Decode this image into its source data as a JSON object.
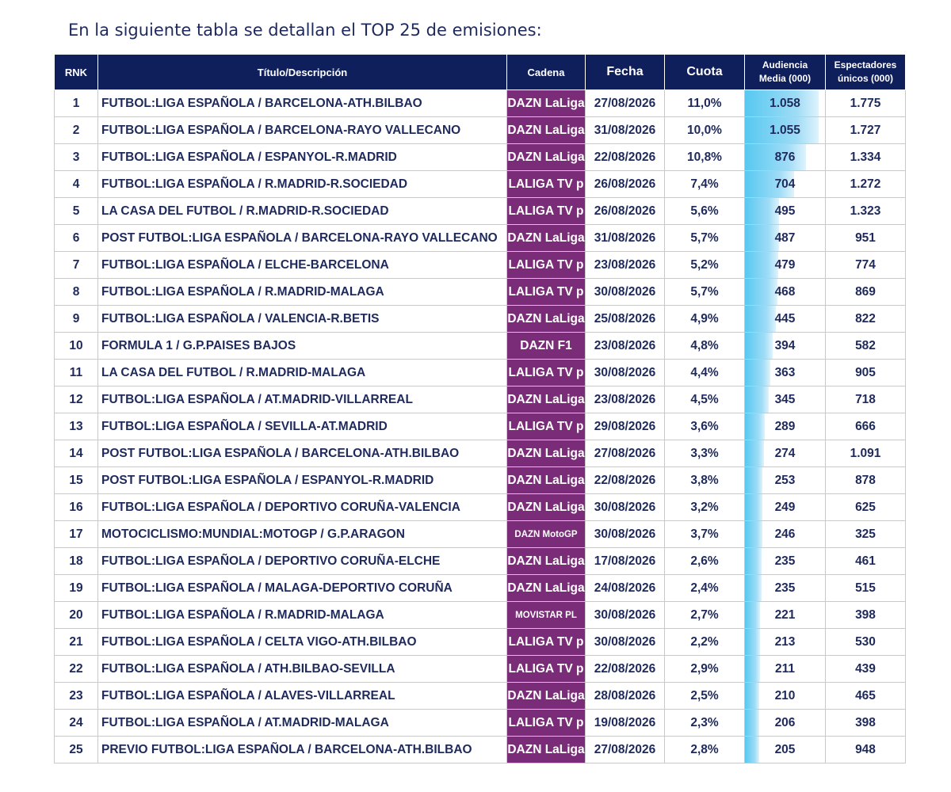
{
  "heading": "En la siguiente tabla se detallan el TOP 25 de emisiones:",
  "table": {
    "headers": {
      "rank": "RNK",
      "title": "Título/Descripción",
      "channel": "Cadena",
      "date": "Fecha",
      "share": "Cuota",
      "audience_line1": "Audiencia",
      "audience_line2": "Media (000)",
      "unique_line1": "Espectadores",
      "unique_line2": "únicos (000)"
    },
    "audience_max": 1058,
    "bar_color": "#57c8f0",
    "channel_color": "#7b2c78",
    "header_color": "#0f1f5c",
    "rows": [
      {
        "rank": "1",
        "title": "FUTBOL:LIGA ESPAÑOLA / BARCELONA-ATH.BILBAO",
        "channel": "DAZN LaLiga",
        "date": "27/08/2026",
        "share": "11,0%",
        "audience": "1.058",
        "unique": "1.775",
        "aud_value": 1058
      },
      {
        "rank": "2",
        "title": "FUTBOL:LIGA ESPAÑOLA / BARCELONA-RAYO VALLECANO",
        "channel": "DAZN LaLiga",
        "date": "31/08/2026",
        "share": "10,0%",
        "audience": "1.055",
        "unique": "1.727",
        "aud_value": 1055
      },
      {
        "rank": "3",
        "title": "FUTBOL:LIGA ESPAÑOLA / ESPANYOL-R.MADRID",
        "channel": "DAZN LaLiga",
        "date": "22/08/2026",
        "share": "10,8%",
        "audience": "876",
        "unique": "1.334",
        "aud_value": 876
      },
      {
        "rank": "4",
        "title": "FUTBOL:LIGA ESPAÑOLA / R.MADRID-R.SOCIEDAD",
        "channel": "LALIGA TV p",
        "date": "26/08/2026",
        "share": "7,4%",
        "audience": "704",
        "unique": "1.272",
        "aud_value": 704
      },
      {
        "rank": "5",
        "title": "LA CASA DEL FUTBOL / R.MADRID-R.SOCIEDAD",
        "channel": "LALIGA TV p",
        "date": "26/08/2026",
        "share": "5,6%",
        "audience": "495",
        "unique": "1.323",
        "aud_value": 495
      },
      {
        "rank": "6",
        "title": "POST FUTBOL:LIGA ESPAÑOLA / BARCELONA-RAYO VALLECANO",
        "channel": "DAZN LaLiga",
        "date": "31/08/2026",
        "share": "5,7%",
        "audience": "487",
        "unique": "951",
        "aud_value": 487
      },
      {
        "rank": "7",
        "title": "FUTBOL:LIGA ESPAÑOLA / ELCHE-BARCELONA",
        "channel": "LALIGA TV p",
        "date": "23/08/2026",
        "share": "5,2%",
        "audience": "479",
        "unique": "774",
        "aud_value": 479
      },
      {
        "rank": "8",
        "title": "FUTBOL:LIGA ESPAÑOLA / R.MADRID-MALAGA",
        "channel": "LALIGA TV p",
        "date": "30/08/2026",
        "share": "5,7%",
        "audience": "468",
        "unique": "869",
        "aud_value": 468
      },
      {
        "rank": "9",
        "title": "FUTBOL:LIGA ESPAÑOLA / VALENCIA-R.BETIS",
        "channel": "DAZN LaLiga",
        "date": "25/08/2026",
        "share": "4,9%",
        "audience": "445",
        "unique": "822",
        "aud_value": 445
      },
      {
        "rank": "10",
        "title": "FORMULA 1 / G.P.PAISES BAJOS",
        "channel": "DAZN F1",
        "date": "23/08/2026",
        "share": "4,8%",
        "audience": "394",
        "unique": "582",
        "aud_value": 394
      },
      {
        "rank": "11",
        "title": "LA CASA DEL FUTBOL / R.MADRID-MALAGA",
        "channel": "LALIGA TV p",
        "date": "30/08/2026",
        "share": "4,4%",
        "audience": "363",
        "unique": "905",
        "aud_value": 363
      },
      {
        "rank": "12",
        "title": "FUTBOL:LIGA ESPAÑOLA / AT.MADRID-VILLARREAL",
        "channel": "DAZN LaLiga",
        "date": "23/08/2026",
        "share": "4,5%",
        "audience": "345",
        "unique": "718",
        "aud_value": 345
      },
      {
        "rank": "13",
        "title": "FUTBOL:LIGA ESPAÑOLA / SEVILLA-AT.MADRID",
        "channel": "LALIGA TV p",
        "date": "29/08/2026",
        "share": "3,6%",
        "audience": "289",
        "unique": "666",
        "aud_value": 289
      },
      {
        "rank": "14",
        "title": "POST FUTBOL:LIGA ESPAÑOLA / BARCELONA-ATH.BILBAO",
        "channel": "DAZN LaLiga",
        "date": "27/08/2026",
        "share": "3,3%",
        "audience": "274",
        "unique": "1.091",
        "aud_value": 274
      },
      {
        "rank": "15",
        "title": "POST FUTBOL:LIGA ESPAÑOLA / ESPANYOL-R.MADRID",
        "channel": "DAZN LaLiga",
        "date": "22/08/2026",
        "share": "3,8%",
        "audience": "253",
        "unique": "878",
        "aud_value": 253
      },
      {
        "rank": "16",
        "title": "FUTBOL:LIGA ESPAÑOLA / DEPORTIVO CORUÑA-VALENCIA",
        "channel": "DAZN LaLiga",
        "date": "30/08/2026",
        "share": "3,2%",
        "audience": "249",
        "unique": "625",
        "aud_value": 249
      },
      {
        "rank": "17",
        "title": "MOTOCICLISMO:MUNDIAL:MOTOGP / G.P.ARAGON",
        "channel": "DAZN MotoGP",
        "date": "30/08/2026",
        "share": "3,7%",
        "audience": "246",
        "unique": "325",
        "aud_value": 246,
        "small": true
      },
      {
        "rank": "18",
        "title": "FUTBOL:LIGA ESPAÑOLA / DEPORTIVO CORUÑA-ELCHE",
        "channel": "DAZN LaLiga",
        "date": "17/08/2026",
        "share": "2,6%",
        "audience": "235",
        "unique": "461",
        "aud_value": 235
      },
      {
        "rank": "19",
        "title": "FUTBOL:LIGA ESPAÑOLA / MALAGA-DEPORTIVO CORUÑA",
        "channel": "DAZN LaLiga",
        "date": "24/08/2026",
        "share": "2,4%",
        "audience": "235",
        "unique": "515",
        "aud_value": 235
      },
      {
        "rank": "20",
        "title": "FUTBOL:LIGA ESPAÑOLA / R.MADRID-MALAGA",
        "channel": "MOVISTAR PL",
        "date": "30/08/2026",
        "share": "2,7%",
        "audience": "221",
        "unique": "398",
        "aud_value": 221,
        "small": true
      },
      {
        "rank": "21",
        "title": "FUTBOL:LIGA ESPAÑOLA / CELTA VIGO-ATH.BILBAO",
        "channel": "LALIGA TV p",
        "date": "30/08/2026",
        "share": "2,2%",
        "audience": "213",
        "unique": "530",
        "aud_value": 213
      },
      {
        "rank": "22",
        "title": "FUTBOL:LIGA ESPAÑOLA / ATH.BILBAO-SEVILLA",
        "channel": "LALIGA TV p",
        "date": "22/08/2026",
        "share": "2,9%",
        "audience": "211",
        "unique": "439",
        "aud_value": 211
      },
      {
        "rank": "23",
        "title": "FUTBOL:LIGA ESPAÑOLA / ALAVES-VILLARREAL",
        "channel": "DAZN LaLiga",
        "date": "28/08/2026",
        "share": "2,5%",
        "audience": "210",
        "unique": "465",
        "aud_value": 210
      },
      {
        "rank": "24",
        "title": "FUTBOL:LIGA ESPAÑOLA / AT.MADRID-MALAGA",
        "channel": "LALIGA TV p",
        "date": "19/08/2026",
        "share": "2,3%",
        "audience": "206",
        "unique": "398",
        "aud_value": 206
      },
      {
        "rank": "25",
        "title": "PREVIO FUTBOL:LIGA ESPAÑOLA / BARCELONA-ATH.BILBAO",
        "channel": "DAZN LaLiga",
        "date": "27/08/2026",
        "share": "2,8%",
        "audience": "205",
        "unique": "948",
        "aud_value": 205
      }
    ]
  }
}
